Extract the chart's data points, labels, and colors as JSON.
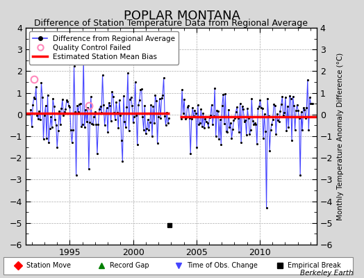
{
  "title": "POPLAR MONTANA",
  "subtitle": "Difference of Station Temperature Data from Regional Average",
  "ylabel": "Monthly Temperature Anomaly Difference (°C)",
  "credit": "Berkeley Earth",
  "xlim": [
    1991.5,
    2014.5
  ],
  "ylim": [
    -6,
    4
  ],
  "yticks": [
    -6,
    -5,
    -4,
    -3,
    -2,
    -1,
    0,
    1,
    2,
    3,
    4
  ],
  "xticks": [
    1995,
    2000,
    2005,
    2010
  ],
  "bias1": 0.05,
  "bias2": -0.1,
  "bias1_start": 1991.5,
  "bias1_end": 2002.9,
  "bias2_start": 2003.7,
  "bias2_end": 2014.5,
  "gap_start": 2002.9,
  "gap_end": 2003.7,
  "empirical_break_x": 2002.9,
  "empirical_break_y": -5.1,
  "qc_fail_x1": 1992.15,
  "qc_fail_y1": 1.62,
  "qc_fail_x2": 1996.5,
  "qc_fail_y2": 0.42,
  "line_color": "#4444ff",
  "dot_color": "#000000",
  "bias_color": "#ff0000",
  "qc_color": "#ff88bb",
  "bg_color": "#d8d8d8",
  "plot_bg": "#ffffff",
  "title_fontsize": 13,
  "subtitle_fontsize": 9,
  "seed1": 17,
  "seed2": 99
}
